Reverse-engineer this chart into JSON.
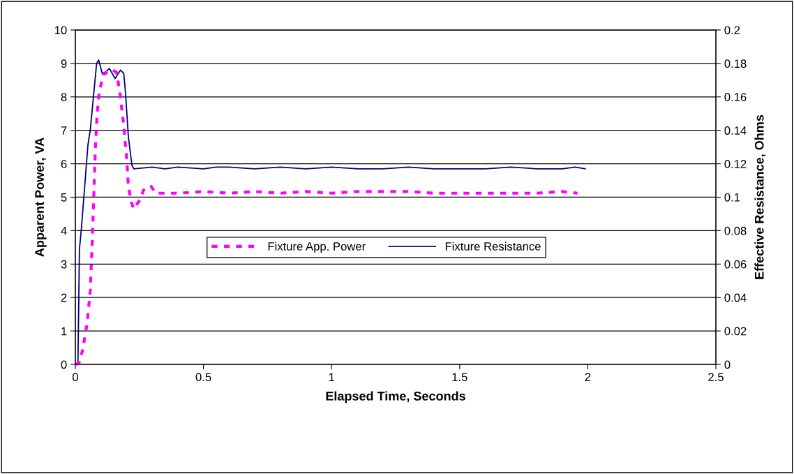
{
  "chart_data": {
    "type": "line",
    "xlabel": "Elapsed Time, Seconds",
    "ylabel": "Apparent Power, VA",
    "y2label": "Effective Resistance, Ohms",
    "xlim": [
      0,
      2.5
    ],
    "xticks": [
      0,
      0.5,
      1,
      1.5,
      2,
      2.5
    ],
    "ylim": [
      0,
      10
    ],
    "yticks": [
      0,
      1,
      2,
      3,
      4,
      5,
      6,
      7,
      8,
      9,
      10
    ],
    "y2lim": [
      0,
      0.2
    ],
    "y2ticks": [
      0,
      0.02,
      0.04,
      0.06,
      0.08,
      0.1,
      0.12,
      0.14,
      0.16,
      0.18,
      0.2
    ],
    "grid": "y",
    "legend": "center",
    "marker": "none",
    "series": [
      {
        "name": "Fixture App. Power",
        "color": "#ff00ff",
        "line_style": "dashed",
        "x": [
          0,
          0.014,
          0.028,
          0.046,
          0.058,
          0.066,
          0.072,
          0.078,
          0.085,
          0.094,
          0.11,
          0.142,
          0.16,
          0.173,
          0.189,
          0.201,
          0.207,
          0.219,
          0.228,
          0.251,
          0.269,
          0.296,
          0.314,
          0.4,
          0.5,
          0.6,
          0.7,
          0.8,
          0.9,
          1.0,
          1.1,
          1.2,
          1.3,
          1.4,
          1.5,
          1.6,
          1.7,
          1.8,
          1.9,
          1.96
        ],
        "values": [
          0,
          0.04,
          0.42,
          1.22,
          2.2,
          3.66,
          5.05,
          6.44,
          7.49,
          8.18,
          8.67,
          8.82,
          8.74,
          8.18,
          7.14,
          6.1,
          5.33,
          4.84,
          4.65,
          4.91,
          5.26,
          5.32,
          5.12,
          5.12,
          5.17,
          5.12,
          5.17,
          5.12,
          5.17,
          5.12,
          5.17,
          5.17,
          5.17,
          5.12,
          5.12,
          5.12,
          5.12,
          5.12,
          5.17,
          5.12
        ]
      },
      {
        "name": "Fixture Resistance",
        "color": "#000080",
        "line_style": "solid",
        "axis": "y2",
        "x": [
          0,
          0.01,
          0.016,
          0.024,
          0.049,
          0.058,
          0.065,
          0.083,
          0.091,
          0.105,
          0.119,
          0.133,
          0.155,
          0.176,
          0.189,
          0.196,
          0.207,
          0.221,
          0.228,
          0.3,
          0.35,
          0.4,
          0.5,
          0.55,
          0.6,
          0.7,
          0.8,
          0.9,
          1.0,
          1.1,
          1.2,
          1.3,
          1.4,
          1.5,
          1.6,
          1.7,
          1.8,
          1.9,
          1.95,
          1.99
        ],
        "values": [
          0,
          0,
          0.069,
          0.082,
          0.131,
          0.14,
          0.151,
          0.18,
          0.182,
          0.174,
          0.175,
          0.177,
          0.171,
          0.176,
          0.174,
          0.162,
          0.136,
          0.119,
          0.117,
          0.118,
          0.117,
          0.118,
          0.117,
          0.118,
          0.118,
          0.117,
          0.118,
          0.117,
          0.118,
          0.117,
          0.117,
          0.118,
          0.117,
          0.117,
          0.117,
          0.118,
          0.117,
          0.117,
          0.118,
          0.117
        ]
      }
    ]
  }
}
